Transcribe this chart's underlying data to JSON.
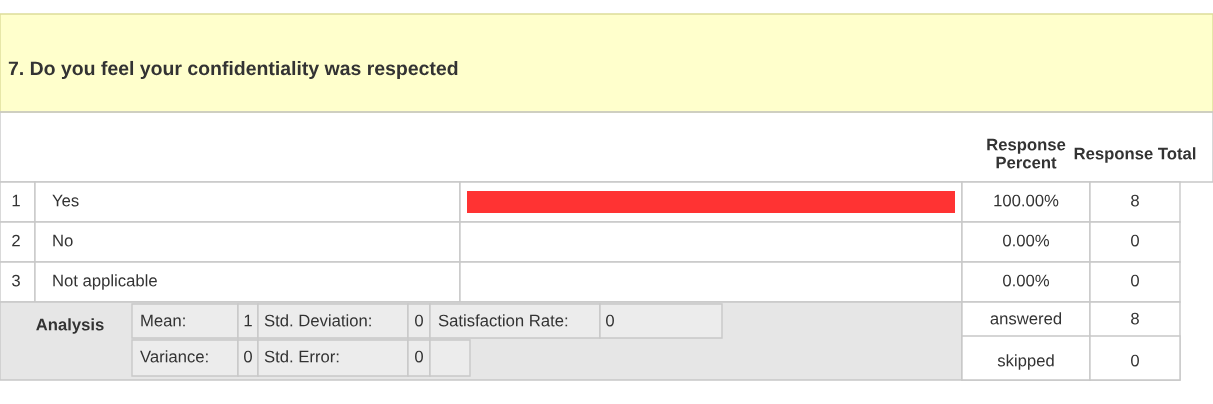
{
  "chart_data": {
    "type": "bar",
    "title": "7. Do you feel your confidentiality was respected",
    "orientation": "horizontal",
    "categories": [
      "Yes",
      "No",
      "Not applicable"
    ],
    "series": [
      {
        "name": "Response Percent",
        "color": "#ff3333",
        "values": [
          100,
          0,
          0
        ],
        "value_labels": [
          "100.00%",
          "0.00%",
          "0.00%"
        ]
      }
    ],
    "data_labels": true,
    "annotations": [
      "Response Total",
      "8",
      "0",
      "0",
      "1",
      "2",
      "3",
      "Analysis",
      "Mean:",
      "1",
      "Std. Deviation:",
      "0",
      "Satisfaction Rate:",
      "0",
      "Variance:",
      "0",
      "Std. Error:",
      "0",
      "answered",
      "8",
      "skipped",
      "0"
    ]
  }
}
